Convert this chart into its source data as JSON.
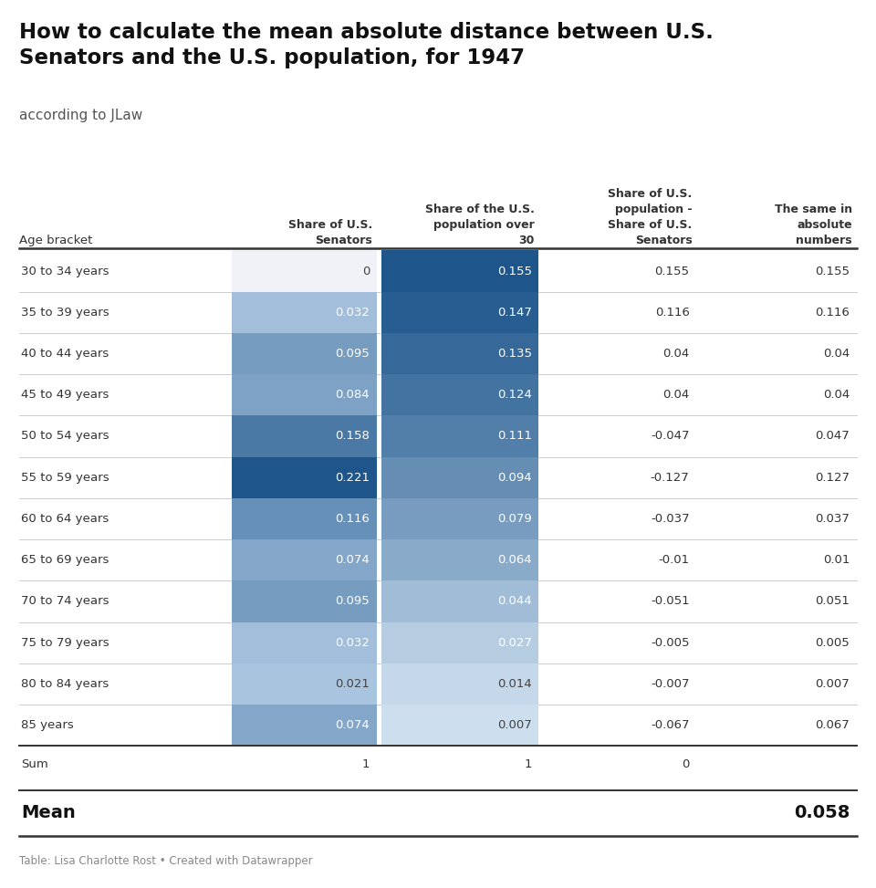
{
  "title": "How to calculate the mean absolute distance between U.S.\nSenators and the U.S. population, for 1947",
  "subtitle": "according to JLaw",
  "footer": "Table: Lisa Charlotte Rost • Created with Datawrapper",
  "col_headers": [
    "Age bracket",
    "Share of U.S.\nSenators",
    "Share of the U.S.\npopulation over\n30",
    "Share of U.S.\npopulation -\nShare of U.S.\nSenators",
    "The same in\nabsolute\nnumbers"
  ],
  "age_brackets": [
    "30 to 34 years",
    "35 to 39 years",
    "40 to 44 years",
    "45 to 49 years",
    "50 to 54 years",
    "55 to 59 years",
    "60 to 64 years",
    "65 to 69 years",
    "70 to 74 years",
    "75 to 79 years",
    "80 to 84 years",
    "85 years"
  ],
  "col1_values": [
    0,
    0.032,
    0.095,
    0.084,
    0.158,
    0.221,
    0.116,
    0.074,
    0.095,
    0.032,
    0.021,
    0.074
  ],
  "col2_values": [
    0.155,
    0.147,
    0.135,
    0.124,
    0.111,
    0.094,
    0.079,
    0.064,
    0.044,
    0.027,
    0.014,
    0.007
  ],
  "col1_display": [
    "0",
    "0.032",
    "0.095",
    "0.084",
    "0.158",
    "0.221",
    "0.116",
    "0.074",
    "0.095",
    "0.032",
    "0.021",
    "0.074"
  ],
  "col2_display": [
    "0.155",
    "0.147",
    "0.135",
    "0.124",
    "0.111",
    "0.094",
    "0.079",
    "0.064",
    "0.044",
    "0.027",
    "0.014",
    "0.007"
  ],
  "col3_display": [
    "0.155",
    "0.116",
    "0.04",
    "0.04",
    "-0.047",
    "-0.127",
    "-0.037",
    "-0.01",
    "-0.051",
    "-0.005",
    "-0.007",
    "-0.067"
  ],
  "col4_display": [
    "0.155",
    "0.116",
    "0.04",
    "0.04",
    "0.047",
    "0.127",
    "0.037",
    "0.01",
    "0.051",
    "0.005",
    "0.007",
    "0.067"
  ],
  "col1_max": 0.221,
  "col2_max": 0.155,
  "background": "#ffffff",
  "title_color": "#111111",
  "subtitle_color": "#555555",
  "footer_color": "#888888",
  "row_line_color": "#cccccc",
  "header_line_color": "#333333"
}
